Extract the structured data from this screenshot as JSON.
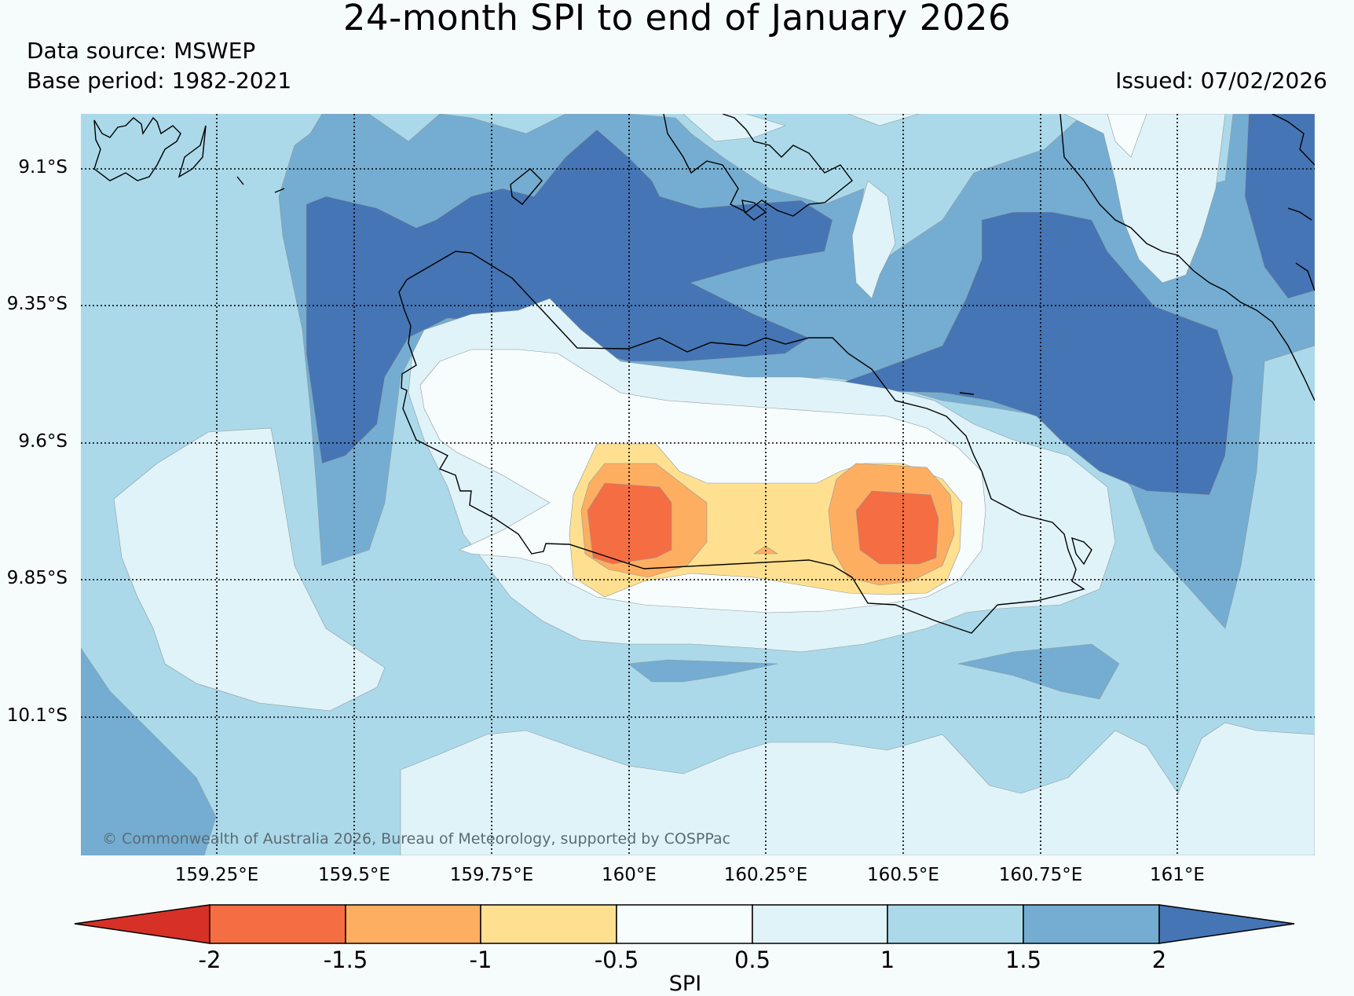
{
  "title": "24-month SPI to end of January 2026",
  "data_source": "Data source: MSWEP",
  "base_period": "Base period: 1982-2021",
  "issued": "Issued: 07/02/2026",
  "copyright": "© Commonwealth of Australia 2026, Bureau of Meteorology, supported by COSPPac",
  "lat_labels": [
    "9.1°S",
    "9.35°S",
    "9.6°S",
    "9.85°S",
    "10.1°S"
  ],
  "lon_labels": [
    "159.25°E",
    "159.5°E",
    "159.75°E",
    "160°E",
    "160.25°E",
    "160.5°E",
    "160.75°E",
    "161°E"
  ],
  "colorbar": {
    "label": "SPI",
    "ticks": [
      "-2",
      "-1.5",
      "-1",
      "-0.5",
      "0.5",
      "1",
      "1.5",
      "2"
    ],
    "colors": [
      "#d73027",
      "#f46d43",
      "#fdae61",
      "#fee090",
      "#f7fcfc",
      "#e0f3f8",
      "#abd9e9",
      "#74add1",
      "#4575b4"
    ]
  }
}
